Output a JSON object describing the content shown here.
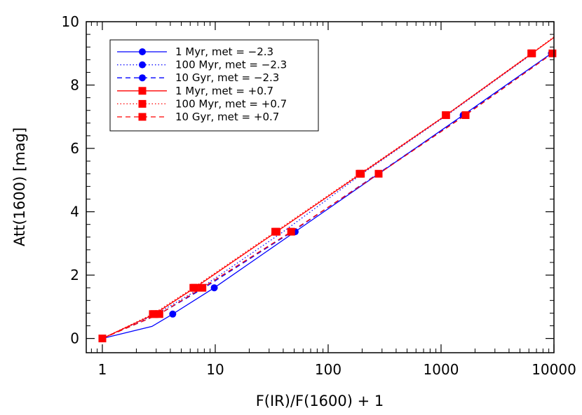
{
  "chart_data": {
    "type": "line",
    "xlabel": "F(IR)/F(1600) + 1",
    "ylabel": "Att(1600) [mag]",
    "xscale": "log",
    "xlim": [
      0.72,
      10000
    ],
    "ylim": [
      -0.45,
      10
    ],
    "x_ticks": [
      1,
      10,
      100,
      1000,
      10000
    ],
    "x_tick_labels": [
      "1",
      "10",
      "100",
      "1000",
      "10000"
    ],
    "y_ticks": [
      0,
      2,
      4,
      6,
      8,
      10
    ],
    "y_tick_labels": [
      "0",
      "2",
      "4",
      "6",
      "8",
      "10"
    ],
    "grid": false,
    "legend_position": "top-left",
    "series": [
      {
        "name": "1 Myr, met = −2.3",
        "color": "#0000ff",
        "dash": "solid",
        "marker": "circle",
        "line_x": [
          1,
          2.75,
          4.2,
          9.8,
          51,
          280,
          1570,
          9500
        ],
        "line_y": [
          0,
          0.38,
          0.77,
          1.6,
          3.37,
          5.2,
          7.05,
          9.0
        ],
        "marker_x": [
          4.2,
          9.8,
          51,
          280,
          1570,
          9500
        ],
        "marker_y": [
          0.77,
          1.6,
          3.37,
          5.2,
          7.05,
          9.0
        ]
      },
      {
        "name": "100 Myr, met = −2.3",
        "color": "#0000ff",
        "dash": "dotted",
        "marker": "circle",
        "line_x": [
          1,
          3.0,
          7.5,
          40,
          200,
          1130,
          6500
        ],
        "line_y": [
          0,
          0.77,
          1.6,
          3.37,
          5.2,
          7.05,
          9.0
        ],
        "marker_x": [],
        "marker_y": []
      },
      {
        "name": "10 Gyr, met = −2.3",
        "color": "#0000ff",
        "dash": "dashed",
        "marker": "circle",
        "line_x": [
          1,
          3.2,
          8.0,
          48,
          275,
          1600,
          9600
        ],
        "line_y": [
          0,
          0.77,
          1.6,
          3.37,
          5.2,
          7.05,
          9.0
        ],
        "marker_x": [],
        "marker_y": []
      },
      {
        "name": "1 Myr, met = +0.7",
        "color": "#ff0000",
        "dash": "solid",
        "marker": "square",
        "line_x": [
          1,
          2.9,
          6.6,
          35,
          195,
          1110,
          6400,
          10000
        ],
        "line_y": [
          0,
          0.77,
          1.6,
          3.37,
          5.2,
          7.05,
          9.0,
          9.5
        ],
        "marker_x": [
          1,
          2.9,
          6.6,
          35,
          195,
          1110,
          6400
        ],
        "marker_y": [
          0,
          0.77,
          1.6,
          3.37,
          5.2,
          7.05,
          9.0
        ]
      },
      {
        "name": "100 Myr, met = +0.7",
        "color": "#ff0000",
        "dash": "dotted",
        "marker": "square",
        "line_x": [
          1,
          2.8,
          6.4,
          34,
          190,
          1100,
          6300,
          10000
        ],
        "line_y": [
          0,
          0.77,
          1.6,
          3.37,
          5.2,
          7.05,
          9.0,
          9.52
        ],
        "marker_x": [
          2.8,
          6.4,
          34,
          190,
          1100,
          6300
        ],
        "marker_y": [
          0.77,
          1.6,
          3.37,
          5.2,
          7.05,
          9.0
        ]
      },
      {
        "name": "10 Gyr, met = +0.7",
        "color": "#ff0000",
        "dash": "dashed",
        "marker": "square",
        "line_x": [
          1,
          3.2,
          7.7,
          47,
          280,
          1650,
          9700,
          10000
        ],
        "line_y": [
          0,
          0.77,
          1.6,
          3.37,
          5.2,
          7.05,
          9.0,
          9.05
        ],
        "marker_x": [
          3.2,
          7.7,
          47,
          280,
          1650,
          9700
        ],
        "marker_y": [
          0.77,
          1.6,
          3.37,
          5.2,
          7.05,
          9.0
        ]
      }
    ]
  }
}
